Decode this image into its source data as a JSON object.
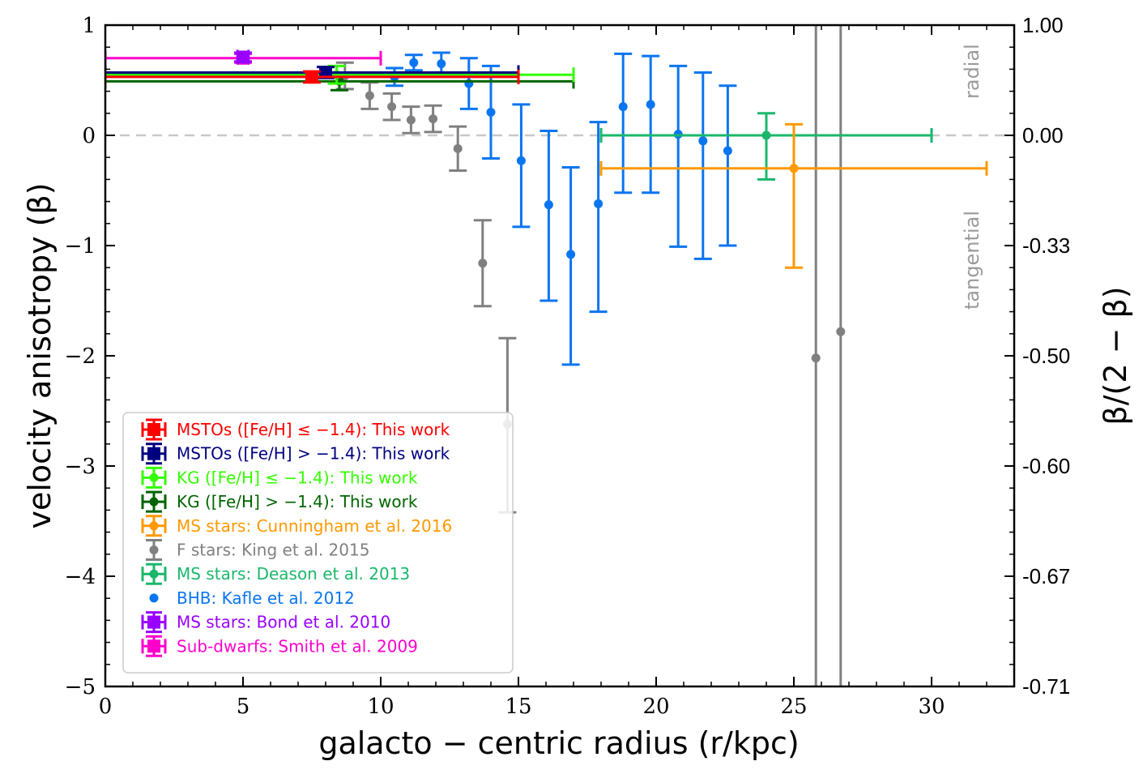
{
  "chart_data": {
    "type": "scatter",
    "xlabel": "galacto − centric radius (r/kpc)",
    "ylabel": "velocity anisotropy (β)",
    "ylabel_right": "β/(2 − β)",
    "xlim": [
      0,
      33
    ],
    "ylim": [
      -5,
      1
    ],
    "x_ticks": [
      0,
      5,
      10,
      15,
      20,
      25,
      30
    ],
    "y_ticks": [
      1,
      0,
      -1,
      -2,
      -3,
      -4,
      -5
    ],
    "y_tick_labels": [
      "1",
      "0",
      "−1",
      "−2",
      "−3",
      "−4",
      "−5"
    ],
    "right_ticks": [
      "1.00",
      "0.00",
      "-0.33",
      "-0.50",
      "-0.60",
      "-0.67",
      "-0.71"
    ],
    "annotations": [
      "radial",
      "tangential"
    ],
    "zero_line": true,
    "legend_position": "lower-left",
    "series": [
      {
        "name": "MSTOs ([Fe/H] ≤ −1.4): This work",
        "color": "#ff0000",
        "marker": "square",
        "points": [
          {
            "x": 7.5,
            "y": 0.53,
            "xerr": [
              7.5,
              7.5
            ],
            "yerr": [
              0.05,
              0.05
            ]
          }
        ]
      },
      {
        "name": "MSTOs ([Fe/H] > −1.4): This work",
        "color": "#000080",
        "marker": "square",
        "points": [
          {
            "x": 8.0,
            "y": 0.57,
            "xerr": [
              8.0,
              7.0
            ],
            "yerr": [
              0.05,
              0.05
            ]
          }
        ]
      },
      {
        "name": "KG ([Fe/H] ≤ −1.4): This work",
        "color": "#33ff00",
        "marker": "circle",
        "points": [
          {
            "x": 8.4,
            "y": 0.55,
            "xerr": [
              8.4,
              8.6
            ],
            "yerr": [
              0.08,
              0.08
            ]
          }
        ]
      },
      {
        "name": "KG ([Fe/H] > −1.4): This work",
        "color": "#006400",
        "marker": "circle",
        "points": [
          {
            "x": 8.5,
            "y": 0.49,
            "xerr": [
              8.5,
              8.5
            ],
            "yerr": [
              0.08,
              0.08
            ]
          }
        ]
      },
      {
        "name": "MS stars: Cunningham et al. 2016",
        "color": "#ff9900",
        "marker": "circle",
        "points": [
          {
            "x": 25.0,
            "y": -0.3,
            "xerr": [
              7.0,
              7.0
            ],
            "yerr": [
              0.9,
              0.4
            ]
          }
        ]
      },
      {
        "name": "F stars: King et al. 2015",
        "color": "#808080",
        "marker": "circle",
        "points": [
          {
            "x": 8.7,
            "y": 0.54,
            "yerr": [
              0.12,
              0.12
            ]
          },
          {
            "x": 9.6,
            "y": 0.36,
            "yerr": [
              0.12,
              0.12
            ]
          },
          {
            "x": 10.4,
            "y": 0.26,
            "yerr": [
              0.12,
              0.12
            ]
          },
          {
            "x": 11.1,
            "y": 0.14,
            "yerr": [
              0.12,
              0.12
            ]
          },
          {
            "x": 11.9,
            "y": 0.15,
            "yerr": [
              0.12,
              0.12
            ]
          },
          {
            "x": 12.8,
            "y": -0.12,
            "yerr": [
              0.2,
              0.2
            ]
          },
          {
            "x": 13.7,
            "y": -1.16,
            "yerr": [
              0.39,
              0.39
            ]
          },
          {
            "x": 14.6,
            "y": -2.62,
            "yerr": [
              0.8,
              0.78
            ]
          },
          {
            "x": 25.8,
            "y": -2.02,
            "yerr": [
              4.0,
              4.0
            ]
          },
          {
            "x": 26.7,
            "y": -1.78,
            "yerr": [
              4.0,
              4.0
            ]
          }
        ]
      },
      {
        "name": "MS stars: Deason et al. 2013",
        "color": "#1ab76b",
        "marker": "circle",
        "points": [
          {
            "x": 24.0,
            "y": 0.0,
            "xerr": [
              6.0,
              6.0
            ],
            "yerr": [
              0.4,
              0.2
            ]
          }
        ]
      },
      {
        "name": "BHB: Kafle et al. 2012",
        "color": "#0a75f0",
        "marker": "circle",
        "points": [
          {
            "x": 10.5,
            "y": 0.53,
            "yerr": [
              0.08,
              0.08
            ]
          },
          {
            "x": 11.2,
            "y": 0.66,
            "yerr": [
              0.07,
              0.07
            ]
          },
          {
            "x": 12.2,
            "y": 0.65,
            "yerr": [
              0.1,
              0.1
            ]
          },
          {
            "x": 13.2,
            "y": 0.47,
            "yerr": [
              0.23,
              0.23
            ]
          },
          {
            "x": 14.0,
            "y": 0.21,
            "yerr": [
              0.42,
              0.42
            ]
          },
          {
            "x": 15.1,
            "y": -0.23,
            "yerr": [
              0.6,
              0.51
            ]
          },
          {
            "x": 16.1,
            "y": -0.63,
            "yerr": [
              0.87,
              0.67
            ]
          },
          {
            "x": 16.9,
            "y": -1.08,
            "yerr": [
              1.0,
              0.79
            ]
          },
          {
            "x": 17.9,
            "y": -0.62,
            "yerr": [
              0.98,
              0.74
            ]
          },
          {
            "x": 18.8,
            "y": 0.26,
            "yerr": [
              0.78,
              0.48
            ]
          },
          {
            "x": 19.8,
            "y": 0.28,
            "yerr": [
              0.8,
              0.44
            ]
          },
          {
            "x": 20.8,
            "y": 0.01,
            "yerr": [
              1.02,
              0.62
            ]
          },
          {
            "x": 21.7,
            "y": -0.05,
            "yerr": [
              1.07,
              0.62
            ]
          },
          {
            "x": 22.6,
            "y": -0.14,
            "yerr": [
              0.86,
              0.59
            ]
          }
        ]
      },
      {
        "name": "MS stars: Bond et al. 2010",
        "color": "#9900ff",
        "marker": "square",
        "points": [
          {
            "x": 5.0,
            "y": 0.71,
            "xerr": [
              0.2,
              0.2
            ],
            "yerr": [
              0.04,
              0.04
            ]
          }
        ]
      },
      {
        "name": "Sub-dwarfs: Smith et al. 2009",
        "color": "#ff00cc",
        "marker": "square",
        "points": [
          {
            "x": 5.0,
            "y": 0.7,
            "xerr": [
              5.0,
              5.0
            ],
            "yerr": [
              0.04,
              0.04
            ]
          }
        ]
      }
    ]
  }
}
